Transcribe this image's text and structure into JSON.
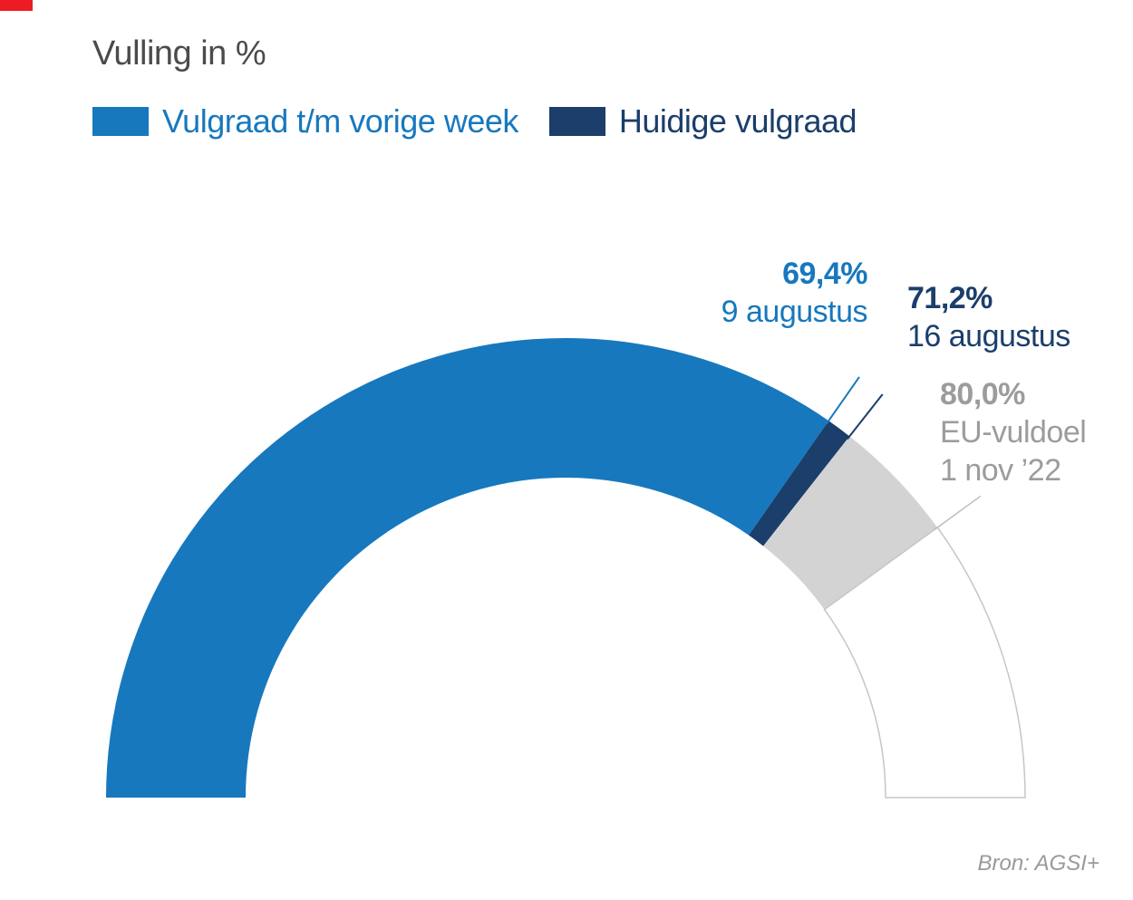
{
  "title": "Vulling in %",
  "legend": [
    {
      "label": "Vulgraad t/m vorige week",
      "color": "#1778be"
    },
    {
      "label": "Huidige vulgraad",
      "color": "#1b3e6b"
    }
  ],
  "source": "Bron: AGSI+",
  "decor": {
    "corner_marker_color": "#ed1c24"
  },
  "chart_data": {
    "type": "gauge",
    "title": "Vulling in %",
    "unit": "%",
    "range": [
      0,
      100
    ],
    "arc_degrees": 180,
    "segments": [
      {
        "label": "Vulgraad t/m vorige week",
        "from": 0,
        "to": 69.4,
        "color": "#1778be"
      },
      {
        "label": "Huidige vulgraad",
        "from": 69.4,
        "to": 71.2,
        "color": "#1b3e6b"
      },
      {
        "label": "",
        "from": 71.2,
        "to": 80.0,
        "color": "#d3d3d4"
      },
      {
        "label": "",
        "from": 80.0,
        "to": 100,
        "color": "#ffffff",
        "stroke": "#c6c6c7"
      }
    ],
    "annotations": [
      {
        "value": 69.4,
        "value_label": "69,4%",
        "sub_label": "9 augustus",
        "color": "#1778be",
        "line_color": "#1778be",
        "line_width": 2
      },
      {
        "value": 71.2,
        "value_label": "71,2%",
        "sub_label": "16 augustus",
        "color": "#1b3e6b",
        "line_color": "#1b3e6b",
        "line_width": 2
      },
      {
        "value": 80.0,
        "value_label": "80,0%",
        "sub_label": "EU-vuldoel",
        "sub_label_2": "1 nov ’22",
        "color": "#9c9c9c",
        "line_color": "#bdbdbd",
        "line_width": 1.5
      }
    ]
  }
}
